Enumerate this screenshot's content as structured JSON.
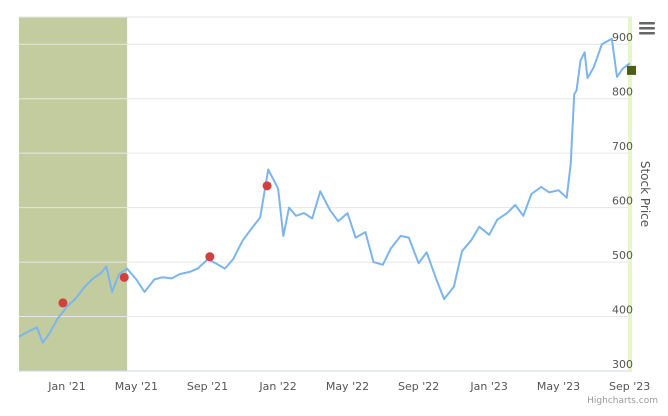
{
  "chart_data": {
    "type": "line",
    "yaxis": {
      "title": "Stock Price",
      "range": [
        300,
        950
      ],
      "ticks": [
        300,
        400,
        500,
        600,
        700,
        800,
        900
      ],
      "position": "right"
    },
    "xaxis": {
      "range": [
        "2020-10-10",
        "2023-09-05"
      ],
      "ticks": [
        {
          "label": "Jan '21",
          "date": "2021-01-01"
        },
        {
          "label": "May '21",
          "date": "2021-05-01"
        },
        {
          "label": "Sep '21",
          "date": "2021-09-01"
        },
        {
          "label": "Jan '22",
          "date": "2022-01-01"
        },
        {
          "label": "May '22",
          "date": "2022-05-01"
        },
        {
          "label": "Sep '22",
          "date": "2022-09-01"
        },
        {
          "label": "Jan '23",
          "date": "2023-01-01"
        },
        {
          "label": "May '23",
          "date": "2023-05-01"
        },
        {
          "label": "Sep '23",
          "date": "2023-09-01"
        }
      ]
    },
    "grid": true,
    "shaded_band": {
      "from": "2020-10-10",
      "to": "2021-04-15",
      "color": "#c2cc9f"
    },
    "series": [
      {
        "color": "#7cb5ec",
        "points": [
          [
            "2020-10-10",
            363
          ],
          [
            "2020-10-25",
            372
          ],
          [
            "2020-11-10",
            380
          ],
          [
            "2020-11-20",
            352
          ],
          [
            "2020-12-01",
            368
          ],
          [
            "2020-12-15",
            395
          ],
          [
            "2021-01-01",
            418
          ],
          [
            "2021-01-15",
            432
          ],
          [
            "2021-02-01",
            455
          ],
          [
            "2021-02-15",
            470
          ],
          [
            "2021-03-01",
            480
          ],
          [
            "2021-03-10",
            492
          ],
          [
            "2021-03-20",
            445
          ],
          [
            "2021-04-01",
            478
          ],
          [
            "2021-04-15",
            488
          ],
          [
            "2021-05-01",
            468
          ],
          [
            "2021-05-15",
            445
          ],
          [
            "2021-06-01",
            468
          ],
          [
            "2021-06-15",
            472
          ],
          [
            "2021-07-01",
            470
          ],
          [
            "2021-07-15",
            478
          ],
          [
            "2021-08-01",
            482
          ],
          [
            "2021-08-15",
            488
          ],
          [
            "2021-09-01",
            505
          ],
          [
            "2021-09-15",
            498
          ],
          [
            "2021-10-01",
            488
          ],
          [
            "2021-10-15",
            505
          ],
          [
            "2021-11-01",
            540
          ],
          [
            "2021-11-15",
            560
          ],
          [
            "2021-12-01",
            582
          ],
          [
            "2021-12-15",
            670
          ],
          [
            "2022-01-01",
            635
          ],
          [
            "2022-01-10",
            548
          ],
          [
            "2022-01-20",
            600
          ],
          [
            "2022-02-01",
            585
          ],
          [
            "2022-02-15",
            590
          ],
          [
            "2022-03-01",
            580
          ],
          [
            "2022-03-15",
            630
          ],
          [
            "2022-04-01",
            595
          ],
          [
            "2022-04-15",
            575
          ],
          [
            "2022-05-01",
            590
          ],
          [
            "2022-05-15",
            545
          ],
          [
            "2022-06-01",
            555
          ],
          [
            "2022-06-15",
            500
          ],
          [
            "2022-07-01",
            495
          ],
          [
            "2022-07-15",
            525
          ],
          [
            "2022-08-01",
            548
          ],
          [
            "2022-08-15",
            545
          ],
          [
            "2022-09-01",
            498
          ],
          [
            "2022-09-15",
            518
          ],
          [
            "2022-10-01",
            470
          ],
          [
            "2022-10-15",
            432
          ],
          [
            "2022-11-01",
            455
          ],
          [
            "2022-11-15",
            520
          ],
          [
            "2022-12-01",
            540
          ],
          [
            "2022-12-15",
            565
          ],
          [
            "2023-01-01",
            550
          ],
          [
            "2023-01-15",
            578
          ],
          [
            "2023-02-01",
            590
          ],
          [
            "2023-02-15",
            605
          ],
          [
            "2023-03-01",
            585
          ],
          [
            "2023-03-15",
            625
          ],
          [
            "2023-04-01",
            638
          ],
          [
            "2023-04-15",
            628
          ],
          [
            "2023-05-01",
            632
          ],
          [
            "2023-05-15",
            618
          ],
          [
            "2023-05-22",
            680
          ],
          [
            "2023-05-28",
            808
          ],
          [
            "2023-06-01",
            815
          ],
          [
            "2023-06-08",
            870
          ],
          [
            "2023-06-15",
            885
          ],
          [
            "2023-06-20",
            838
          ],
          [
            "2023-07-01",
            858
          ],
          [
            "2023-07-15",
            900
          ],
          [
            "2023-08-01",
            910
          ],
          [
            "2023-08-10",
            840
          ],
          [
            "2023-08-20",
            855
          ],
          [
            "2023-09-01",
            865
          ]
        ]
      }
    ],
    "markers": [
      {
        "date": "2020-12-25",
        "value": 425,
        "color": "#d23f3f"
      },
      {
        "date": "2021-04-10",
        "value": 472,
        "color": "#d23f3f"
      },
      {
        "date": "2021-09-05",
        "value": 510,
        "color": "#d23f3f"
      },
      {
        "date": "2021-12-13",
        "value": 640,
        "color": "#d23f3f"
      }
    ],
    "end_marker": {
      "value": 852,
      "color": "#4b5e16"
    },
    "credits": "Highcharts.com"
  },
  "colors": {
    "line": "#7cb5ec",
    "band": "#c2cc9f",
    "marker": "#d23f3f",
    "end_marker": "#4b5e16",
    "grid": "#e6e6e6",
    "right_strip": "#e8f5c4"
  },
  "icons": {
    "menu": "hamburger-menu-icon"
  }
}
